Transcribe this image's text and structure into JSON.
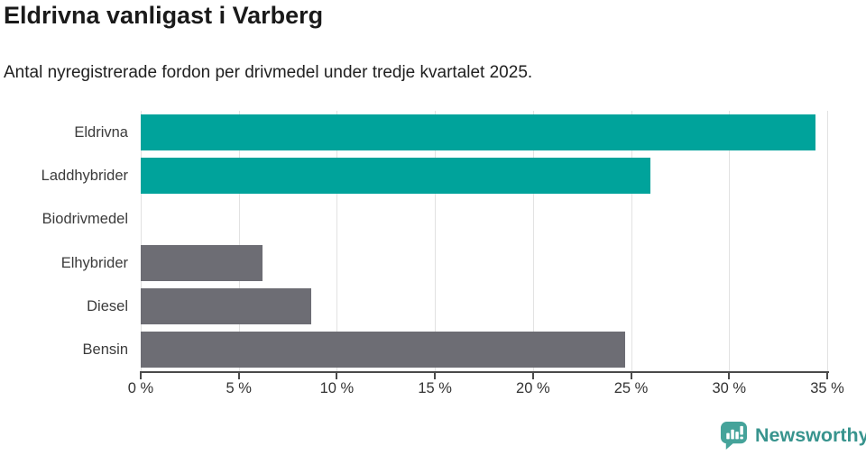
{
  "title": "Eldrivna vanligast i Varberg",
  "subtitle": "Antal nyregistrerade fordon per drivmedel under tredje kvartalet 2025.",
  "chart_data": {
    "type": "bar",
    "orientation": "horizontal",
    "title": "Eldrivna vanligast i Varberg",
    "subtitle": "Antal nyregistrerade fordon per drivmedel under tredje kvartalet 2025.",
    "categories": [
      "Eldrivna",
      "Laddhybrider",
      "Biodrivmedel",
      "Elhybrider",
      "Diesel",
      "Bensin"
    ],
    "values": [
      34.4,
      26.0,
      0.0,
      6.2,
      8.7,
      24.7
    ],
    "bar_colors": [
      "#00a39b",
      "#00a39b",
      "#6d6d74",
      "#6d6d74",
      "#6d6d74",
      "#6d6d74"
    ],
    "xlabel": "",
    "ylabel": "",
    "xlim": [
      0,
      35
    ],
    "xticks": [
      0,
      5,
      10,
      15,
      20,
      25,
      30,
      35
    ],
    "xtick_suffix": " %",
    "grid": "vertical-gridlines",
    "legend": "none"
  },
  "colors": {
    "teal": "#00a39b",
    "gray": "#6d6d74",
    "gridline": "#e2e2e2",
    "axis": "#4a4a4a",
    "tick_text": "#333333",
    "label_text": "#3b3b3b",
    "brand": "#38948e"
  },
  "footer": {
    "brand": "Newsworthy",
    "logo_icon": "bar-chart-speech-bubble-icon"
  }
}
